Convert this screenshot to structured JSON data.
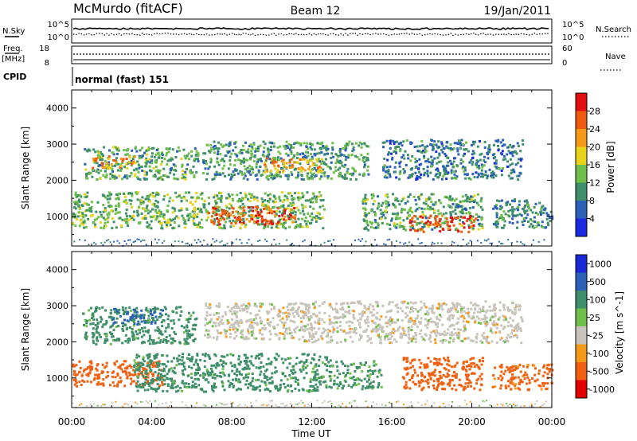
{
  "header": {
    "station": "McMurdo (fitACF)",
    "beam": "Beam 12",
    "date": "19/Jan/2011"
  },
  "status_panel": {
    "nsky_label": "N.Sky",
    "nsky_ticks": [
      "10^5",
      "10^0"
    ],
    "nsearch_label": "N.Search",
    "nsearch_ticks": [
      "10^5",
      "10^0"
    ],
    "freq_label": "Freq.",
    "freq_unit": "[MHz]",
    "freq_ticks": [
      "18",
      "8"
    ],
    "nave_label": "Nave",
    "nave_ticks": [
      "60",
      "0"
    ],
    "cpid_label": "CPID",
    "cpid_value": "normal (fast) 151"
  },
  "colors": {
    "power": [
      "#1a28e0",
      "#2a60b8",
      "#3f8f6a",
      "#6fbf4a",
      "#e8d21a",
      "#f59a18",
      "#f05a10",
      "#e01010"
    ],
    "velocity": [
      "#e00000",
      "#f06010",
      "#f59a18",
      "#c8c4bc",
      "#6fbf4a",
      "#3f8f6a",
      "#2a60b8",
      "#1a28d8"
    ]
  },
  "chart_data": [
    {
      "type": "heatmap",
      "title": "",
      "xlabel": "",
      "ylabel": "Slant Range [km]",
      "xlim": [
        0,
        24
      ],
      "ylim": [
        180,
        4500
      ],
      "y_ticks": [
        "1000",
        "2000",
        "3000",
        "4000"
      ],
      "colorbar": {
        "label": "Power [dB]",
        "ticks": [
          "4",
          "8",
          "12",
          "16",
          "20",
          "24",
          "28"
        ],
        "range": [
          0,
          32
        ]
      },
      "regions": [
        {
          "t0": 0.6,
          "t1": 6.3,
          "r0": 2050,
          "r1": 2950,
          "level": 12
        },
        {
          "t0": 1.0,
          "t1": 3.2,
          "r0": 2350,
          "r1": 2700,
          "level": 22
        },
        {
          "t0": 6.5,
          "t1": 14.8,
          "r0": 2050,
          "r1": 3100,
          "level": 11
        },
        {
          "t0": 9.5,
          "t1": 12.5,
          "r0": 2250,
          "r1": 2650,
          "level": 21
        },
        {
          "t0": 15.5,
          "t1": 22.5,
          "r0": 2050,
          "r1": 3150,
          "level": 8
        },
        {
          "t0": 0.0,
          "t1": 12.6,
          "r0": 700,
          "r1": 1700,
          "level": 13
        },
        {
          "t0": 6.8,
          "t1": 11.2,
          "r0": 800,
          "r1": 1300,
          "level": 26
        },
        {
          "t0": 14.5,
          "t1": 20.5,
          "r0": 650,
          "r1": 1650,
          "level": 12
        },
        {
          "t0": 16.8,
          "t1": 20.2,
          "r0": 600,
          "r1": 1050,
          "level": 28
        },
        {
          "t0": 21.0,
          "t1": 24.0,
          "r0": 700,
          "r1": 1500,
          "level": 9
        }
      ]
    },
    {
      "type": "heatmap",
      "title": "",
      "xlabel": "Time UT",
      "ylabel": "Slant Range [km]",
      "xlim": [
        0,
        24
      ],
      "ylim": [
        180,
        4500
      ],
      "x_ticks": [
        "00:00",
        "04:00",
        "08:00",
        "12:00",
        "16:00",
        "20:00",
        "00:00"
      ],
      "y_ticks": [
        "1000",
        "2000",
        "3000",
        "4000"
      ],
      "colorbar": {
        "label": "Velocity [m s^-1]",
        "ticks": [
          "1000",
          "500",
          "100",
          "25",
          "-25",
          "-100",
          "-500",
          "-1000"
        ]
      },
      "regions": [
        {
          "t0": 0.5,
          "t1": 6.2,
          "r0": 1950,
          "r1": 3000,
          "level": 150
        },
        {
          "t0": 2.0,
          "t1": 4.5,
          "r0": 2500,
          "r1": 2950,
          "level": 600
        },
        {
          "t0": 6.6,
          "t1": 11.5,
          "r0": 2100,
          "r1": 3100,
          "level": 0
        },
        {
          "t0": 11.5,
          "t1": 22.5,
          "r0": 2000,
          "r1": 3150,
          "level": 0
        },
        {
          "t0": 0.0,
          "t1": 4.5,
          "r0": 800,
          "r1": 1500,
          "level": -200
        },
        {
          "t0": 3.0,
          "t1": 13.0,
          "r0": 650,
          "r1": 1700,
          "level": 150
        },
        {
          "t0": 13.0,
          "t1": 15.5,
          "r0": 700,
          "r1": 1500,
          "level": 120
        },
        {
          "t0": 16.5,
          "t1": 20.5,
          "r0": 700,
          "r1": 1600,
          "level": -200
        },
        {
          "t0": 21.0,
          "t1": 24.0,
          "r0": 700,
          "r1": 1400,
          "level": -150
        }
      ]
    }
  ]
}
